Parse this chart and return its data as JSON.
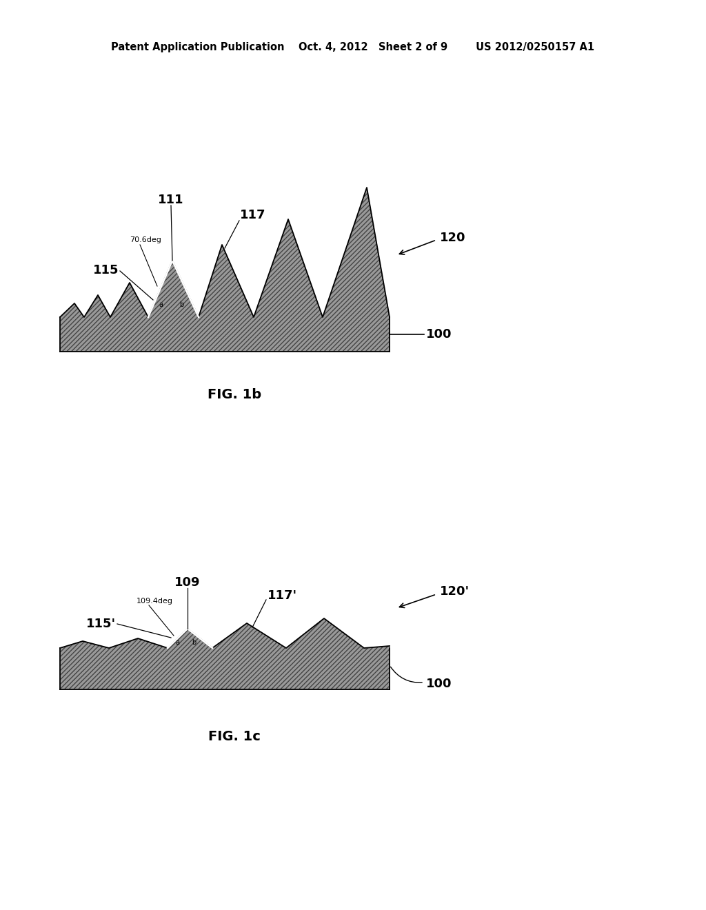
{
  "bg_color": "#ffffff",
  "header_text": "Patent Application Publication    Oct. 4, 2012   Sheet 2 of 9        US 2012/0250157 A1",
  "fig1b_caption": "FIG. 1b",
  "fig1c_caption": "FIG. 1c",
  "fill_color": "#aaaaaa",
  "fig1b": {
    "label_111": "111",
    "label_117": "117",
    "label_115": "115",
    "label_120": "120",
    "label_100": "100",
    "angle_label": "70.6deg"
  },
  "fig1c": {
    "label_109": "109",
    "label_117p": "117'",
    "label_115p": "115'",
    "label_120p": "120'",
    "label_100": "100",
    "angle_label": "109.4deg"
  }
}
